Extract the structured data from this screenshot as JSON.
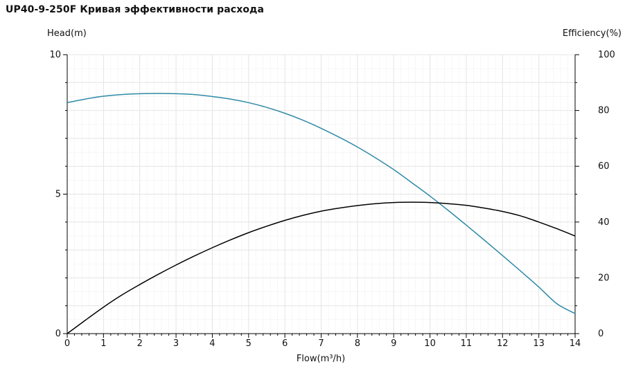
{
  "chart_data": {
    "type": "line",
    "title": "UP40-9-250F Кривая эффективности расхода",
    "xlabel": "Flow(m³/h)",
    "ylabel": "Head(m)",
    "y2label": "Efficiency(%)",
    "xlim": [
      0,
      14
    ],
    "ylim": [
      0,
      10
    ],
    "y2lim": [
      0,
      100
    ],
    "x_ticks": [
      "0",
      "1",
      "2",
      "3",
      "4",
      "5",
      "6",
      "7",
      "8",
      "9",
      "10",
      "11",
      "12",
      "13",
      "14"
    ],
    "y_ticks": [
      "0",
      "5",
      "10"
    ],
    "y2_ticks": [
      "0",
      "20",
      "40",
      "60",
      "80",
      "100"
    ],
    "grid": true,
    "colors": {
      "head": "#2e8aa6",
      "efficiency": "#000000",
      "grid": "#e4e4e4",
      "axis": "#000000"
    },
    "series": [
      {
        "axis": "left",
        "color": "#2e8aa6",
        "x": [
          0,
          0.5,
          1,
          1.5,
          2,
          2.5,
          3,
          3.5,
          4,
          4.5,
          5,
          5.5,
          6,
          6.5,
          7,
          7.5,
          8,
          8.5,
          9,
          9.5,
          10,
          10.5,
          11,
          11.5,
          12,
          12.5,
          13,
          13.5,
          14
        ],
        "y": [
          8.28,
          8.41,
          8.51,
          8.57,
          8.6,
          8.61,
          8.6,
          8.57,
          8.5,
          8.41,
          8.28,
          8.11,
          7.9,
          7.65,
          7.36,
          7.04,
          6.69,
          6.3,
          5.88,
          5.41,
          4.93,
          4.42,
          3.89,
          3.35,
          2.8,
          2.24,
          1.67,
          1.07,
          0.72
        ]
      },
      {
        "axis": "right",
        "color": "#000000",
        "x": [
          0,
          0.5,
          1,
          1.5,
          2,
          2.5,
          3,
          3.5,
          4,
          4.5,
          5,
          5.5,
          6,
          6.5,
          7,
          7.5,
          8,
          8.5,
          9,
          9.5,
          10,
          10.5,
          11,
          11.5,
          12,
          12.5,
          13,
          13.5,
          14
        ],
        "y": [
          0,
          4.8,
          9.5,
          13.8,
          17.6,
          21.2,
          24.6,
          27.8,
          30.8,
          33.6,
          36.2,
          38.5,
          40.6,
          42.4,
          43.9,
          45.0,
          45.9,
          46.6,
          47.0,
          47.1,
          47.0,
          46.6,
          46.0,
          45.0,
          43.8,
          42.2,
          40.0,
          37.6,
          35.0
        ]
      }
    ]
  }
}
